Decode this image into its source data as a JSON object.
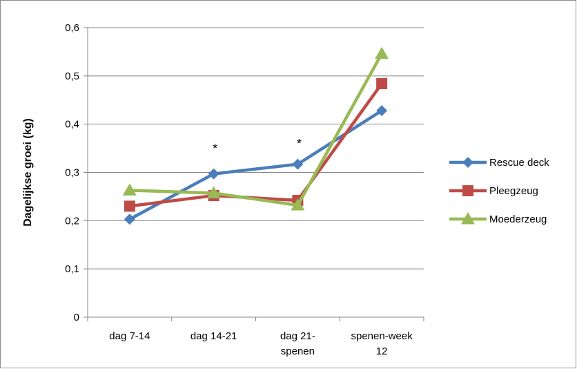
{
  "chart_data": {
    "type": "line",
    "ylabel": "Dagelijkse groei (kg)",
    "xlabel": "",
    "ylim": [
      0,
      0.6
    ],
    "yticks": [
      "0",
      "0,1",
      "0,2",
      "0,3",
      "0,4",
      "0,5",
      "0,6"
    ],
    "ytick_values": [
      0,
      0.1,
      0.2,
      0.3,
      0.4,
      0.5,
      0.6
    ],
    "grid": true,
    "legend_position": "right",
    "categories": [
      [
        "dag 7-14"
      ],
      [
        "dag 14-21"
      ],
      [
        "dag 21-",
        "spenen"
      ],
      [
        "spenen-week",
        "12"
      ]
    ],
    "series": [
      {
        "name": "Rescue deck",
        "color": "#4a7ebb",
        "marker": "diamond",
        "values": [
          0.203,
          0.297,
          0.317,
          0.428
        ]
      },
      {
        "name": "Pleegzeug",
        "color": "#be4b48",
        "marker": "square",
        "values": [
          0.23,
          0.252,
          0.242,
          0.484
        ]
      },
      {
        "name": "Moederzeug",
        "color": "#98b954",
        "marker": "triangle",
        "values": [
          0.263,
          0.257,
          0.232,
          0.546
        ]
      }
    ],
    "annotations": [
      {
        "text": "*",
        "category_index": 1,
        "y": 0.355
      },
      {
        "text": "*",
        "category_index": 2,
        "y": 0.365
      }
    ]
  }
}
